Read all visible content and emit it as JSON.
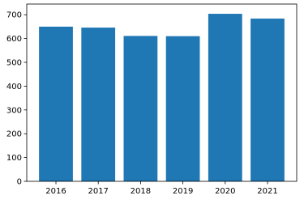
{
  "chart_data": {
    "type": "bar",
    "categories": [
      "2016",
      "2017",
      "2018",
      "2019",
      "2020",
      "2021"
    ],
    "values": [
      650,
      646,
      611,
      610,
      704,
      684
    ],
    "color": "#1f77b4",
    "ylim": [
      0,
      745
    ],
    "yticks": [
      0,
      100,
      200,
      300,
      400,
      500,
      600,
      700
    ],
    "grid": false
  }
}
